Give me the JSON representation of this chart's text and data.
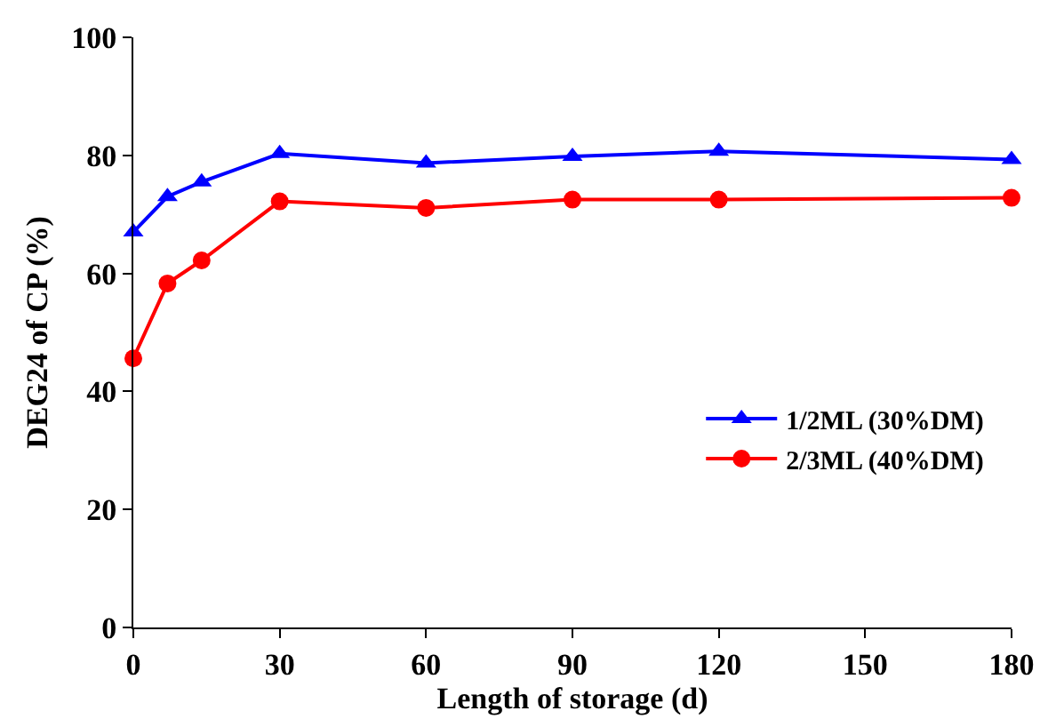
{
  "chart_data": {
    "type": "line",
    "xlabel": "Length of storage (d)",
    "ylabel": "DEG24 of CP (%)",
    "x": [
      0,
      7,
      14,
      30,
      60,
      90,
      120,
      180
    ],
    "series": [
      {
        "name": "1/2ML (30%DM)",
        "color": "#0000ff",
        "marker": "triangle",
        "values": [
          67,
          73,
          75.5,
          80.3,
          78.7,
          79.8,
          80.7,
          79.3
        ]
      },
      {
        "name": "2/3ML (40%DM)",
        "color": "#ff0000",
        "marker": "circle",
        "values": [
          45.6,
          58.3,
          62.2,
          72.2,
          71.1,
          72.5,
          72.5,
          72.8
        ]
      }
    ],
    "xlim": [
      0,
      180
    ],
    "xticks": [
      0,
      30,
      60,
      90,
      120,
      150,
      180
    ],
    "ylim": [
      0,
      100
    ],
    "yticks": [
      0,
      20,
      40,
      60,
      80,
      100
    ],
    "legend": "right",
    "line_style": "solid"
  }
}
